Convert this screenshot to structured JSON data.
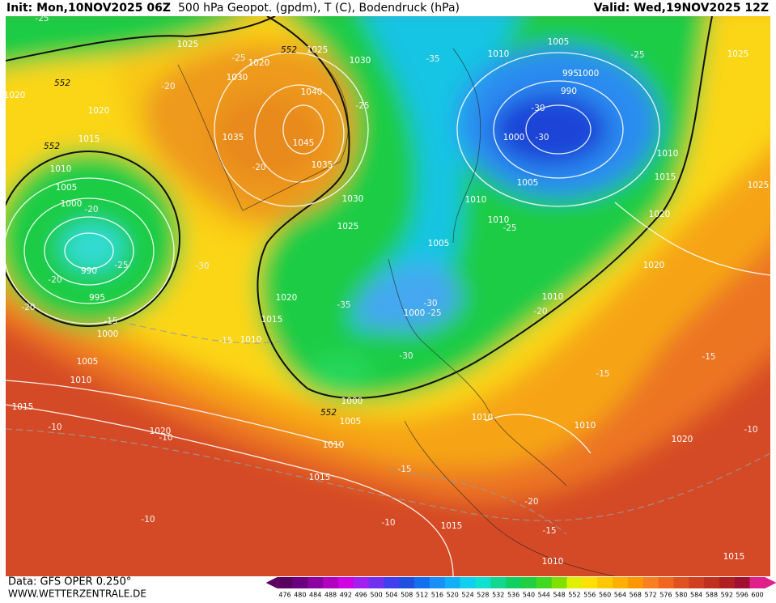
{
  "header": {
    "init": "Init: Mon,10NOV2025 06Z",
    "title": "500 hPa Geopot. (gpdm), T (C), Bodendruck (hPa)",
    "valid": "Valid: Wed,19NOV2025 12Z"
  },
  "footer": {
    "data_source": "Data: GFS OPER 0.250°",
    "website": "WWW.WETTERZENTRALE.DE"
  },
  "color_scale": {
    "labels": [
      476,
      480,
      484,
      488,
      492,
      496,
      500,
      504,
      508,
      512,
      516,
      520,
      524,
      528,
      532,
      536,
      540,
      544,
      548,
      552,
      556,
      560,
      564,
      568,
      572,
      576,
      580,
      584,
      588,
      592,
      596,
      600
    ],
    "colors": [
      "#5a0060",
      "#6a0080",
      "#8a00a0",
      "#b000c0",
      "#d000e0",
      "#a020f0",
      "#7030f0",
      "#4040f0",
      "#2050e0",
      "#1070f0",
      "#1890f8",
      "#10b0f8",
      "#10d0f0",
      "#10e0d0",
      "#10d890",
      "#10d060",
      "#20d040",
      "#40d820",
      "#80e000",
      "#e0f000",
      "#ffe000",
      "#ffc800",
      "#ffb000",
      "#ff9800",
      "#f88020",
      "#f06820",
      "#e05020",
      "#d04020",
      "#c03020",
      "#b02020",
      "#a01030",
      "#e0208a"
    ]
  },
  "map": {
    "pressure_labels": [
      "1025",
      "1020",
      "1025",
      "1030",
      "1030",
      "1020",
      "1020",
      "1040",
      "1035",
      "1045",
      "1035",
      "1015",
      "1010",
      "1005",
      "1000",
      "1030",
      "1025",
      "990",
      "995",
      "1000",
      "1005",
      "1010",
      "1015",
      "1020",
      "1020",
      "1015",
      "1010",
      "1000",
      "1005",
      "1010",
      "1015",
      "1015",
      "1010",
      "1010",
      "1010",
      "1010",
      "1020",
      "1020",
      "1015",
      "1010",
      "1025",
      "1025",
      "1020",
      "1015",
      "1005",
      "1010",
      "995",
      "1000",
      "990",
      "1000",
      "1005",
      "1010",
      "1010",
      "1005",
      "1000"
    ],
    "temperature_labels": [
      "-25",
      "-25",
      "-20",
      "-25",
      "-35",
      "-25",
      "-30",
      "-30",
      "-20",
      "-20",
      "-25",
      "-20",
      "-20",
      "-30",
      "-15",
      "-15",
      "-35",
      "-30",
      "-25",
      "-30",
      "-25",
      "-20",
      "-15",
      "-15",
      "-10",
      "-10",
      "-15",
      "-20",
      "-10",
      "-10",
      "-15",
      "-10"
    ],
    "height_labels": [
      "552",
      "552",
      "552",
      "552"
    ]
  }
}
